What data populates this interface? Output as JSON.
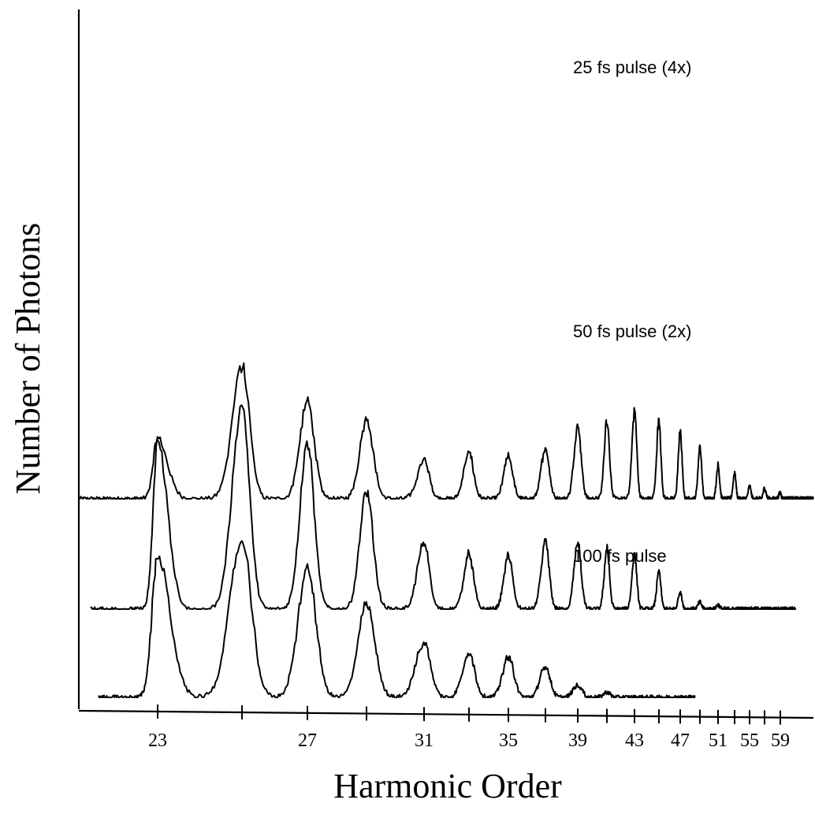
{
  "chart_data": {
    "type": "line",
    "title": "",
    "xlabel": "Harmonic Order",
    "ylabel": "Number of Photons",
    "x_tick_labels": [
      "23",
      "27",
      "31",
      "35",
      "39",
      "43",
      "47",
      "51",
      "55",
      "59"
    ],
    "x_tick_positions": [
      23,
      25,
      27,
      29,
      31,
      33,
      35,
      37,
      39,
      41,
      43,
      45,
      47,
      49,
      51,
      53,
      55,
      57,
      59
    ],
    "grid": false,
    "series": [
      {
        "name": "25 fs pulse (4x)",
        "offset": 2.25,
        "baseline_extent": [
          19.0,
          66.0
        ],
        "peaks": [
          {
            "x": 23,
            "y": 0.68
          },
          {
            "x": 25,
            "y": 1.5
          },
          {
            "x": 27,
            "y": 1.1
          },
          {
            "x": 29,
            "y": 0.9
          },
          {
            "x": 31,
            "y": 0.44
          },
          {
            "x": 33,
            "y": 0.52
          },
          {
            "x": 35,
            "y": 0.48
          },
          {
            "x": 37,
            "y": 0.58
          },
          {
            "x": 39,
            "y": 0.83
          },
          {
            "x": 41,
            "y": 0.9
          },
          {
            "x": 43,
            "y": 1.0
          },
          {
            "x": 45,
            "y": 0.88
          },
          {
            "x": 47,
            "y": 0.76
          },
          {
            "x": 49,
            "y": 0.6
          },
          {
            "x": 51,
            "y": 0.38
          },
          {
            "x": 53,
            "y": 0.3
          },
          {
            "x": 55,
            "y": 0.14
          },
          {
            "x": 57,
            "y": 0.12
          },
          {
            "x": 59,
            "y": 0.07
          }
        ]
      },
      {
        "name": "50 fs pulse (2x)",
        "offset": 1.0,
        "baseline_extent": [
          19.6,
          62.0
        ],
        "peaks": [
          {
            "x": 23,
            "y": 1.9
          },
          {
            "x": 25,
            "y": 2.3
          },
          {
            "x": 27,
            "y": 1.88
          },
          {
            "x": 29,
            "y": 1.32
          },
          {
            "x": 31,
            "y": 0.75
          },
          {
            "x": 33,
            "y": 0.62
          },
          {
            "x": 35,
            "y": 0.6
          },
          {
            "x": 37,
            "y": 0.75
          },
          {
            "x": 39,
            "y": 0.75
          },
          {
            "x": 41,
            "y": 0.68
          },
          {
            "x": 43,
            "y": 0.62
          },
          {
            "x": 45,
            "y": 0.42
          },
          {
            "x": 47,
            "y": 0.2
          },
          {
            "x": 49,
            "y": 0.08
          },
          {
            "x": 51,
            "y": 0.05
          }
        ]
      },
      {
        "name": "100 fs pulse",
        "offset": 0.0,
        "baseline_extent": [
          20.0,
          48.5
        ],
        "peaks": [
          {
            "x": 23,
            "y": 1.6
          },
          {
            "x": 25,
            "y": 1.78
          },
          {
            "x": 27,
            "y": 1.45
          },
          {
            "x": 29,
            "y": 1.05
          },
          {
            "x": 31,
            "y": 0.62
          },
          {
            "x": 33,
            "y": 0.5
          },
          {
            "x": 35,
            "y": 0.46
          },
          {
            "x": 37,
            "y": 0.35
          },
          {
            "x": 39,
            "y": 0.14
          },
          {
            "x": 41,
            "y": 0.06
          }
        ]
      }
    ]
  }
}
